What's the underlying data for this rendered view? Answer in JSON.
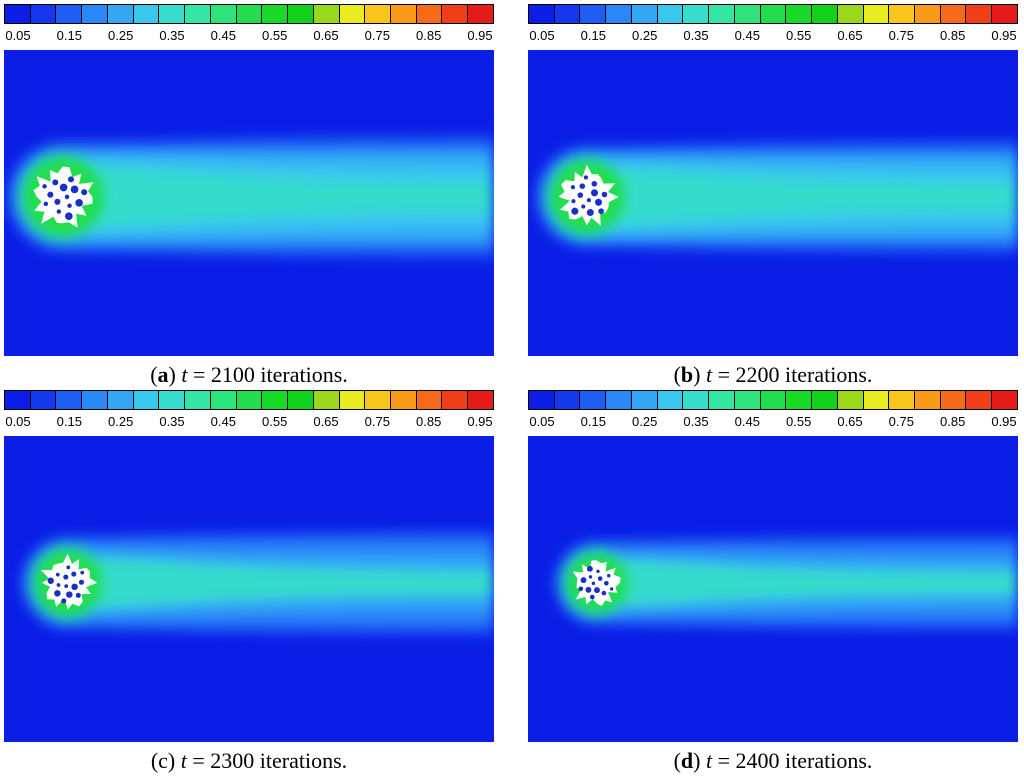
{
  "colorbar": {
    "colors": [
      "#0b1ee6",
      "#1537f0",
      "#1f5ef5",
      "#2a87f7",
      "#33a9f5",
      "#38c8ee",
      "#36dccc",
      "#33e6a6",
      "#2fe37c",
      "#22de4e",
      "#18d928",
      "#10d218",
      "#9ad81a",
      "#e9ec20",
      "#f8c51b",
      "#fb9918",
      "#f66a18",
      "#f13d18",
      "#e51a1a"
    ],
    "tick_labels": [
      "0.05",
      "0.15",
      "0.25",
      "0.35",
      "0.45",
      "0.55",
      "0.65",
      "0.75",
      "0.85",
      "0.95"
    ]
  },
  "chart_data": [
    {
      "type": "heatmap",
      "panel_label": "a",
      "label_style": "bold",
      "variable": "t",
      "iteration": "2100",
      "caption_suffix": "iterations.",
      "colorbar_range": [
        0.05,
        0.95
      ],
      "field_background_value": 0.05,
      "obstacle_center_norm": [
        0.12,
        0.48
      ],
      "obstacle_radius_norm": 0.065,
      "wake_value": 0.3
    },
    {
      "type": "heatmap",
      "panel_label": "b",
      "label_style": "bold",
      "variable": "t",
      "iteration": "2200",
      "caption_suffix": "iterations.",
      "colorbar_range": [
        0.05,
        0.95
      ],
      "field_background_value": 0.05,
      "obstacle_center_norm": [
        0.12,
        0.48
      ],
      "obstacle_radius_norm": 0.06,
      "wake_value": 0.3
    },
    {
      "type": "heatmap",
      "panel_label": "c",
      "label_style": "plain",
      "variable": "t",
      "iteration": "2300",
      "caption_suffix": "iterations.",
      "colorbar_range": [
        0.05,
        0.95
      ],
      "field_background_value": 0.05,
      "obstacle_center_norm": [
        0.13,
        0.48
      ],
      "obstacle_radius_norm": 0.055,
      "wake_value": 0.28
    },
    {
      "type": "heatmap",
      "panel_label": "d",
      "label_style": "bold",
      "variable": "t",
      "iteration": "2400",
      "caption_suffix": "iterations.",
      "colorbar_range": [
        0.05,
        0.95
      ],
      "field_background_value": 0.05,
      "obstacle_center_norm": [
        0.14,
        0.48
      ],
      "obstacle_radius_norm": 0.05,
      "wake_value": 0.28
    }
  ]
}
